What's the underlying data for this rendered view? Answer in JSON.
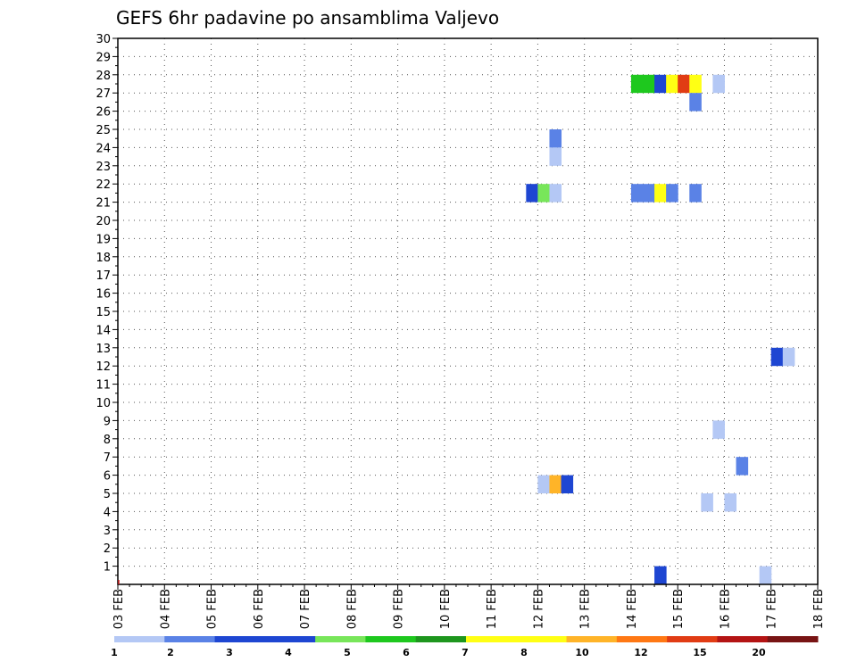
{
  "chart_data": {
    "type": "heatmap",
    "title": "GEFS 6hr padavine po ansamblima Valjevo",
    "y_ticks": [
      "1",
      "2",
      "3",
      "4",
      "5",
      "6",
      "7",
      "8",
      "9",
      "10",
      "11",
      "12",
      "13",
      "14",
      "15",
      "16",
      "17",
      "18",
      "19",
      "20",
      "21",
      "22",
      "23",
      "24",
      "25",
      "26",
      "27",
      "28",
      "29",
      "30"
    ],
    "ylim": [
      0,
      30
    ],
    "x_ticks": [
      "03 FEB",
      "04 FEB",
      "05 FEB",
      "06 FEB",
      "07 FEB",
      "08 FEB",
      "09 FEB",
      "10 FEB",
      "11 FEB",
      "12 FEB",
      "13 FEB",
      "14 FEB",
      "15 FEB",
      "16 FEB",
      "17 FEB",
      "18 FEB"
    ],
    "xlim": [
      0,
      15
    ],
    "grid": true,
    "colorbar": {
      "labels": [
        "1",
        "2",
        "3",
        "4",
        "5",
        "6",
        "7",
        "8",
        "10",
        "12",
        "15",
        "20"
      ],
      "colors": [
        "#b4c8f5",
        "#5a82e6",
        "#1e46d2",
        "#1e46d2",
        "#78e65a",
        "#1ec81e",
        "#1e961e",
        "#ffff14",
        "#ffff14",
        "#ffb428",
        "#ff7814",
        "#e13c14",
        "#b41414",
        "#781414"
      ]
    },
    "cells": [
      {
        "t": 11.0,
        "m": 28,
        "color": "#1ec81e"
      },
      {
        "t": 11.25,
        "m": 28,
        "color": "#1ec81e"
      },
      {
        "t": 11.5,
        "m": 28,
        "color": "#1e46d2"
      },
      {
        "t": 11.75,
        "m": 28,
        "color": "#ffff14"
      },
      {
        "t": 12.0,
        "m": 28,
        "color": "#e13c14"
      },
      {
        "t": 12.25,
        "m": 28,
        "color": "#ffff14"
      },
      {
        "t": 12.75,
        "m": 28,
        "color": "#b4c8f5"
      },
      {
        "t": 12.25,
        "m": 27,
        "color": "#5a82e6"
      },
      {
        "t": 9.25,
        "m": 25,
        "color": "#5a82e6"
      },
      {
        "t": 9.25,
        "m": 24,
        "color": "#b4c8f5"
      },
      {
        "t": 8.75,
        "m": 22,
        "color": "#1e46d2"
      },
      {
        "t": 9.0,
        "m": 22,
        "color": "#78e65a"
      },
      {
        "t": 9.25,
        "m": 22,
        "color": "#b4c8f5"
      },
      {
        "t": 11.0,
        "m": 22,
        "color": "#5a82e6"
      },
      {
        "t": 11.25,
        "m": 22,
        "color": "#5a82e6"
      },
      {
        "t": 11.5,
        "m": 22,
        "color": "#ffff14"
      },
      {
        "t": 11.75,
        "m": 22,
        "color": "#5a82e6"
      },
      {
        "t": 12.25,
        "m": 22,
        "color": "#5a82e6"
      },
      {
        "t": 14.0,
        "m": 13,
        "color": "#1e46d2"
      },
      {
        "t": 14.25,
        "m": 13,
        "color": "#b4c8f5"
      },
      {
        "t": 12.75,
        "m": 9,
        "color": "#b4c8f5"
      },
      {
        "t": 13.25,
        "m": 7,
        "color": "#5a82e6"
      },
      {
        "t": 9.0,
        "m": 6,
        "color": "#b4c8f5"
      },
      {
        "t": 9.25,
        "m": 6,
        "color": "#ffb428"
      },
      {
        "t": 9.5,
        "m": 6,
        "color": "#1e46d2"
      },
      {
        "t": 12.5,
        "m": 5,
        "color": "#b4c8f5"
      },
      {
        "t": 13.0,
        "m": 5,
        "color": "#b4c8f5"
      },
      {
        "t": 11.5,
        "m": 1,
        "color": "#1e46d2"
      },
      {
        "t": 13.75,
        "m": 1,
        "color": "#b4c8f5"
      }
    ]
  }
}
